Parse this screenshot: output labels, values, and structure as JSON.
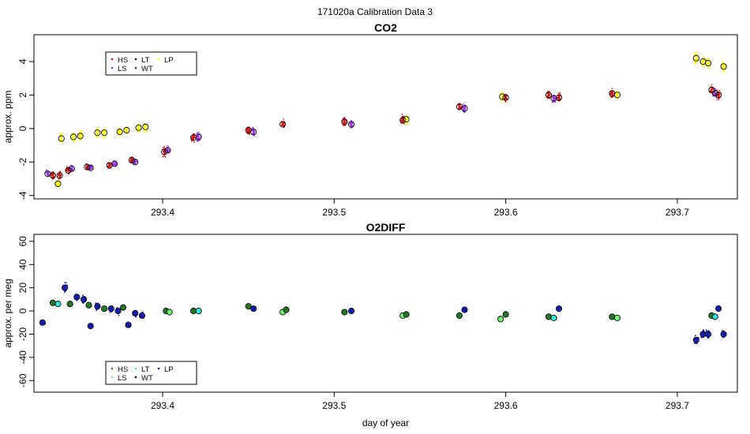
{
  "figure_title": "171020a   Calibration Data 3",
  "colors": {
    "HS": "#dd1111",
    "LS": "#a030f0",
    "LT": "#111111",
    "WT": "#6b2a12",
    "LP": "#ffff00",
    "o2_HS": "#1e7a1e",
    "o2_LS": "#6cff6c",
    "o2_LT": "#2ee8e0",
    "o2_WT": "#000000",
    "o2_LP": "#101ab4"
  },
  "chart_data": [
    {
      "type": "scatter",
      "title": "CO2",
      "xlabel": "",
      "ylabel": "approx. ppm",
      "xlim": [
        293.325,
        293.735
      ],
      "ylim": [
        -4.2,
        5.6
      ],
      "x_ticks": [
        293.4,
        293.5,
        293.6,
        293.7
      ],
      "x_tick_labels": [
        "293.4",
        "293.5",
        "293.6",
        "293.7"
      ],
      "y_ticks": [
        -4,
        -2,
        0,
        2,
        4
      ],
      "y_tick_labels": [
        "-4",
        "-2",
        "0",
        "2",
        "4"
      ],
      "legend": {
        "placement": "top-left",
        "entries": [
          {
            "label": "HS",
            "color_key": "HS"
          },
          {
            "label": "LS",
            "color_key": "LS"
          },
          {
            "label": "LT",
            "color_key": "LT"
          },
          {
            "label": "WT",
            "color_key": "WT"
          },
          {
            "label": "LP",
            "color_key": "LP"
          }
        ]
      },
      "clusters": [
        {
          "x": 293.333,
          "y": -2.7,
          "color_key": "LS",
          "spread": 0.35
        },
        {
          "x": 293.336,
          "y": -2.8,
          "color_key": "HS",
          "spread": 0.35
        },
        {
          "x": 293.339,
          "y": -3.3,
          "color_key": "LP",
          "spread": 0.3
        },
        {
          "x": 293.34,
          "y": -2.8,
          "color_key": "HS",
          "spread": 0.35
        },
        {
          "x": 293.341,
          "y": -0.6,
          "color_key": "LP",
          "spread": 0.5
        },
        {
          "x": 293.345,
          "y": -2.5,
          "color_key": "HS",
          "spread": 0.3
        },
        {
          "x": 293.347,
          "y": -2.4,
          "color_key": "LS",
          "spread": 0.3
        },
        {
          "x": 293.348,
          "y": -0.5,
          "color_key": "LP",
          "spread": 0.5
        },
        {
          "x": 293.352,
          "y": -0.45,
          "color_key": "LP",
          "spread": 0.5
        },
        {
          "x": 293.356,
          "y": -2.3,
          "color_key": "HS",
          "spread": 0.35
        },
        {
          "x": 293.358,
          "y": -2.35,
          "color_key": "LS",
          "spread": 0.35
        },
        {
          "x": 293.362,
          "y": -0.25,
          "color_key": "LP",
          "spread": 0.5
        },
        {
          "x": 293.366,
          "y": -0.25,
          "color_key": "LP",
          "spread": 0.5
        },
        {
          "x": 293.369,
          "y": -2.2,
          "color_key": "HS",
          "spread": 0.35
        },
        {
          "x": 293.372,
          "y": -2.1,
          "color_key": "LS",
          "spread": 0.35
        },
        {
          "x": 293.375,
          "y": -0.2,
          "color_key": "LP",
          "spread": 0.5
        },
        {
          "x": 293.379,
          "y": -0.1,
          "color_key": "LP",
          "spread": 0.5
        },
        {
          "x": 293.382,
          "y": -1.9,
          "color_key": "HS",
          "spread": 0.35
        },
        {
          "x": 293.384,
          "y": -2.0,
          "color_key": "LS",
          "spread": 0.35
        },
        {
          "x": 293.386,
          "y": 0.05,
          "color_key": "LP",
          "spread": 0.5
        },
        {
          "x": 293.39,
          "y": 0.1,
          "color_key": "LP",
          "spread": 0.5
        },
        {
          "x": 293.401,
          "y": -1.4,
          "color_key": "HS",
          "spread": 0.4
        },
        {
          "x": 293.403,
          "y": -1.3,
          "color_key": "LS",
          "spread": 0.4
        },
        {
          "x": 293.418,
          "y": -0.55,
          "color_key": "HS",
          "spread": 0.45
        },
        {
          "x": 293.421,
          "y": -0.5,
          "color_key": "LS",
          "spread": 0.45
        },
        {
          "x": 293.45,
          "y": -0.1,
          "color_key": "HS",
          "spread": 0.45
        },
        {
          "x": 293.453,
          "y": -0.2,
          "color_key": "LS",
          "spread": 0.45
        },
        {
          "x": 293.47,
          "y": 0.25,
          "color_key": "HS",
          "spread": 0.45
        },
        {
          "x": 293.506,
          "y": 0.4,
          "color_key": "HS",
          "spread": 0.45
        },
        {
          "x": 293.51,
          "y": 0.25,
          "color_key": "LS",
          "spread": 0.45
        },
        {
          "x": 293.54,
          "y": 0.5,
          "color_key": "HS",
          "spread": 0.45
        },
        {
          "x": 293.542,
          "y": 0.55,
          "color_key": "LP",
          "spread": 0.45
        },
        {
          "x": 293.573,
          "y": 1.3,
          "color_key": "HS",
          "spread": 0.45
        },
        {
          "x": 293.576,
          "y": 1.2,
          "color_key": "LS",
          "spread": 0.45
        },
        {
          "x": 293.598,
          "y": 1.9,
          "color_key": "LP",
          "spread": 0.5
        },
        {
          "x": 293.6,
          "y": 1.85,
          "color_key": "HS",
          "spread": 0.45
        },
        {
          "x": 293.625,
          "y": 2.0,
          "color_key": "HS",
          "spread": 0.45
        },
        {
          "x": 293.628,
          "y": 1.8,
          "color_key": "LS",
          "spread": 0.45
        },
        {
          "x": 293.631,
          "y": 1.85,
          "color_key": "HS",
          "spread": 0.45
        },
        {
          "x": 293.662,
          "y": 2.1,
          "color_key": "HS",
          "spread": 0.45
        },
        {
          "x": 293.665,
          "y": 2.0,
          "color_key": "LP",
          "spread": 0.45
        },
        {
          "x": 293.711,
          "y": 4.2,
          "color_key": "LP",
          "spread": 0.6
        },
        {
          "x": 293.715,
          "y": 4.0,
          "color_key": "LP",
          "spread": 0.6
        },
        {
          "x": 293.718,
          "y": 3.9,
          "color_key": "LP",
          "spread": 0.6
        },
        {
          "x": 293.72,
          "y": 2.3,
          "color_key": "HS",
          "spread": 0.45
        },
        {
          "x": 293.722,
          "y": 2.1,
          "color_key": "LS",
          "spread": 0.45
        },
        {
          "x": 293.724,
          "y": 2.0,
          "color_key": "HS",
          "spread": 0.45
        },
        {
          "x": 293.727,
          "y": 3.7,
          "color_key": "LP",
          "spread": 0.5
        }
      ]
    },
    {
      "type": "scatter",
      "title": "O2DIFF",
      "xlabel": "day of year",
      "ylabel": "approx. per meg",
      "xlim": [
        293.325,
        293.735
      ],
      "ylim": [
        -70,
        66
      ],
      "x_ticks": [
        293.4,
        293.5,
        293.6,
        293.7
      ],
      "x_tick_labels": [
        "293.4",
        "293.5",
        "293.6",
        "293.7"
      ],
      "y_ticks": [
        -60,
        -40,
        -20,
        0,
        20,
        40,
        60
      ],
      "y_tick_labels": [
        "-60",
        "-40",
        "-20",
        "0",
        "20",
        "40",
        "60"
      ],
      "legend": {
        "placement": "bottom-left",
        "entries": [
          {
            "label": "HS",
            "color_key": "o2_HS"
          },
          {
            "label": "LS",
            "color_key": "o2_LS"
          },
          {
            "label": "LT",
            "color_key": "o2_LT"
          },
          {
            "label": "WT",
            "color_key": "o2_WT"
          },
          {
            "label": "LP",
            "color_key": "o2_LP"
          }
        ]
      },
      "clusters": [
        {
          "x": 293.33,
          "y": -10,
          "color_key": "o2_LP",
          "spread": 3
        },
        {
          "x": 293.336,
          "y": 7,
          "color_key": "o2_HS",
          "spread": 3
        },
        {
          "x": 293.339,
          "y": 6,
          "color_key": "o2_LT",
          "spread": 3
        },
        {
          "x": 293.343,
          "y": 20,
          "color_key": "o2_LP",
          "spread": 6
        },
        {
          "x": 293.346,
          "y": 6,
          "color_key": "o2_HS",
          "spread": 3
        },
        {
          "x": 293.35,
          "y": 12,
          "color_key": "o2_LP",
          "spread": 7
        },
        {
          "x": 293.354,
          "y": 10,
          "color_key": "o2_LP",
          "spread": 7
        },
        {
          "x": 293.357,
          "y": 5,
          "color_key": "o2_HS",
          "spread": 3
        },
        {
          "x": 293.358,
          "y": -13,
          "color_key": "o2_LP",
          "spread": 3
        },
        {
          "x": 293.362,
          "y": 4,
          "color_key": "o2_LP",
          "spread": 5
        },
        {
          "x": 293.366,
          "y": 2,
          "color_key": "o2_HS",
          "spread": 3
        },
        {
          "x": 293.37,
          "y": 2,
          "color_key": "o2_LP",
          "spread": 5
        },
        {
          "x": 293.374,
          "y": 0,
          "color_key": "o2_LP",
          "spread": 5
        },
        {
          "x": 293.377,
          "y": 3,
          "color_key": "o2_HS",
          "spread": 3
        },
        {
          "x": 293.38,
          "y": -12,
          "color_key": "o2_LP",
          "spread": 3
        },
        {
          "x": 293.384,
          "y": -2,
          "color_key": "o2_LP",
          "spread": 5
        },
        {
          "x": 293.388,
          "y": -4,
          "color_key": "o2_LP",
          "spread": 5
        },
        {
          "x": 293.402,
          "y": 0,
          "color_key": "o2_HS",
          "spread": 3
        },
        {
          "x": 293.404,
          "y": -1,
          "color_key": "o2_LS",
          "spread": 3
        },
        {
          "x": 293.418,
          "y": 0,
          "color_key": "o2_HS",
          "spread": 3
        },
        {
          "x": 293.421,
          "y": 0,
          "color_key": "o2_LT",
          "spread": 3
        },
        {
          "x": 293.45,
          "y": 4,
          "color_key": "o2_HS",
          "spread": 3
        },
        {
          "x": 293.453,
          "y": 2,
          "color_key": "o2_LP",
          "spread": 3
        },
        {
          "x": 293.47,
          "y": -1,
          "color_key": "o2_LS",
          "spread": 3
        },
        {
          "x": 293.472,
          "y": 1,
          "color_key": "o2_HS",
          "spread": 3
        },
        {
          "x": 293.506,
          "y": -1,
          "color_key": "o2_HS",
          "spread": 3
        },
        {
          "x": 293.51,
          "y": 0,
          "color_key": "o2_LP",
          "spread": 3
        },
        {
          "x": 293.54,
          "y": -4,
          "color_key": "o2_LS",
          "spread": 3
        },
        {
          "x": 293.542,
          "y": -3,
          "color_key": "o2_HS",
          "spread": 3
        },
        {
          "x": 293.573,
          "y": -4,
          "color_key": "o2_HS",
          "spread": 3
        },
        {
          "x": 293.576,
          "y": 1,
          "color_key": "o2_LP",
          "spread": 3
        },
        {
          "x": 293.597,
          "y": -7,
          "color_key": "o2_LS",
          "spread": 4
        },
        {
          "x": 293.6,
          "y": -3,
          "color_key": "o2_HS",
          "spread": 3
        },
        {
          "x": 293.625,
          "y": -5,
          "color_key": "o2_HS",
          "spread": 3
        },
        {
          "x": 293.628,
          "y": -6,
          "color_key": "o2_LT",
          "spread": 3
        },
        {
          "x": 293.631,
          "y": 2,
          "color_key": "o2_LP",
          "spread": 3
        },
        {
          "x": 293.662,
          "y": -5,
          "color_key": "o2_HS",
          "spread": 3
        },
        {
          "x": 293.665,
          "y": -6,
          "color_key": "o2_LS",
          "spread": 3
        },
        {
          "x": 293.711,
          "y": -25,
          "color_key": "o2_LP",
          "spread": 6
        },
        {
          "x": 293.715,
          "y": -20,
          "color_key": "o2_LP",
          "spread": 6
        },
        {
          "x": 293.718,
          "y": -20,
          "color_key": "o2_LP",
          "spread": 6
        },
        {
          "x": 293.72,
          "y": -4,
          "color_key": "o2_HS",
          "spread": 3
        },
        {
          "x": 293.722,
          "y": -5,
          "color_key": "o2_LT",
          "spread": 3
        },
        {
          "x": 293.724,
          "y": 2,
          "color_key": "o2_LP",
          "spread": 3
        },
        {
          "x": 293.727,
          "y": -20,
          "color_key": "o2_LP",
          "spread": 6
        }
      ]
    }
  ]
}
